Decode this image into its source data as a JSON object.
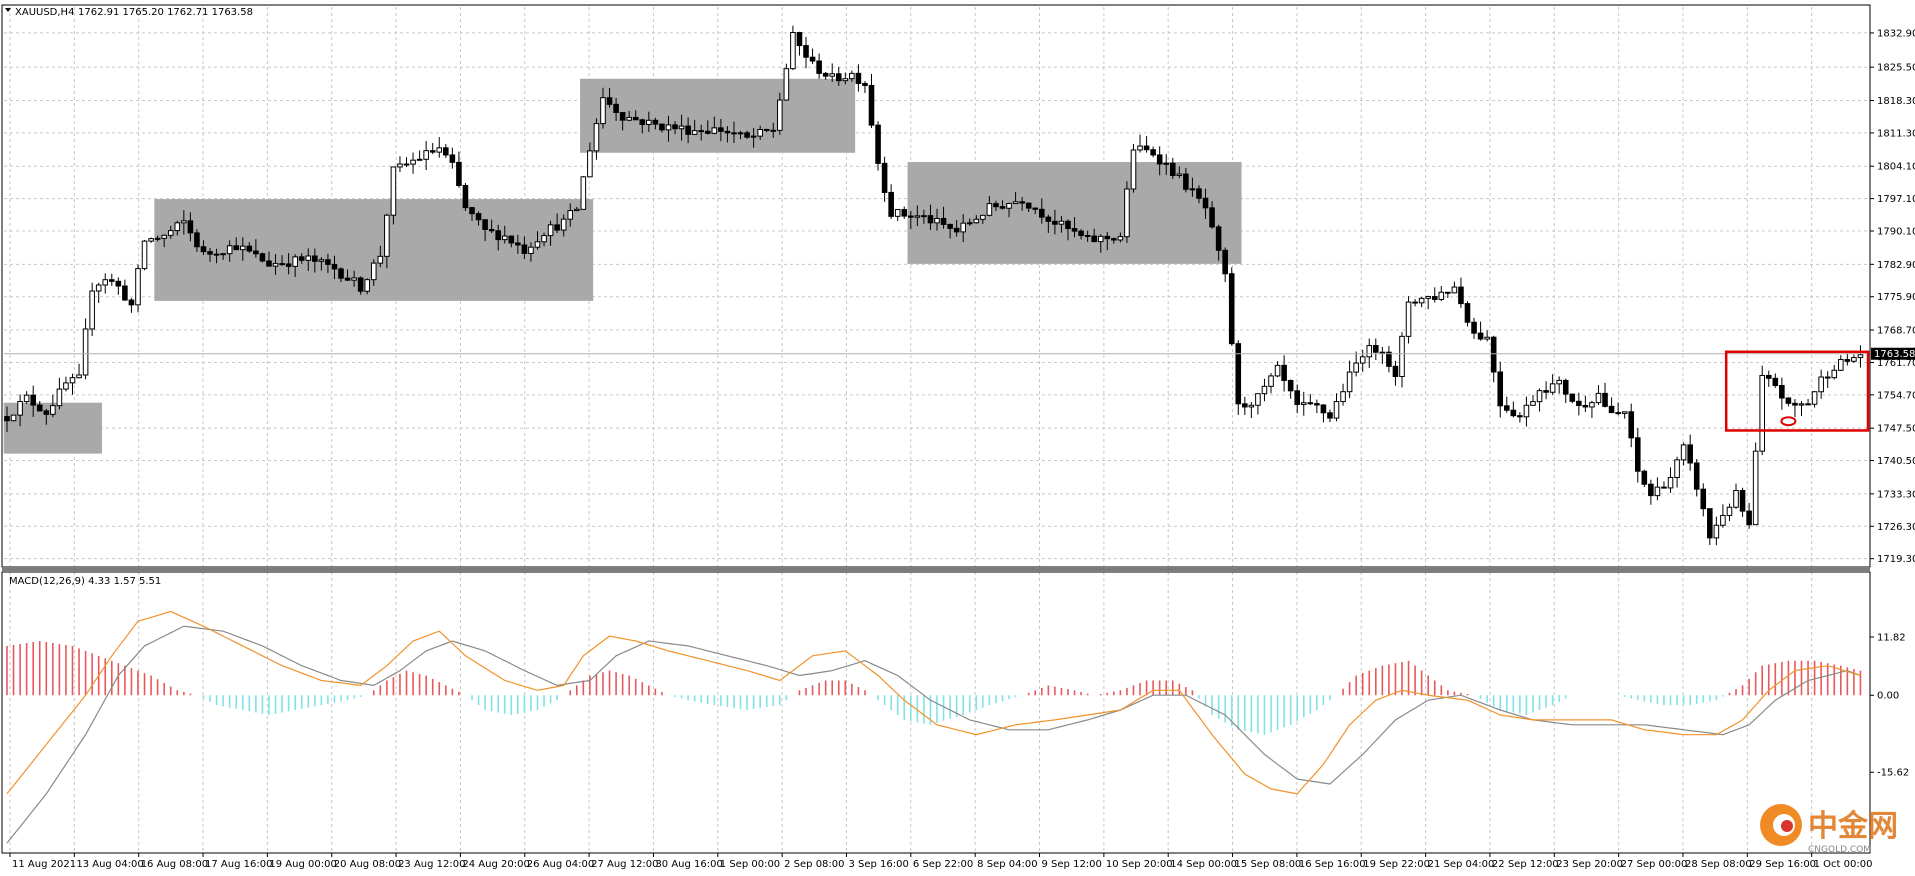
{
  "header": {
    "symbol_label": "XAUUSD,H4",
    "ohlc_label": "1762.91 1765.20 1762.71 1763.58"
  },
  "macd_header": {
    "label": "MACD(12,26,9) 4.33 1.57 5.51"
  },
  "watermark": {
    "brand": "中金网",
    "sub": "CNGOLD.COM"
  },
  "colors": {
    "grid": "#c8c8c8",
    "bull_body": "#ffffff",
    "bear_body": "#000000",
    "range_box": "#a9a9a9",
    "highlight": "#e00000",
    "macd_pos": "#e8585a",
    "macd_neg": "#7fe3e8",
    "macd_line": "#f0932b",
    "signal_line": "#8a8a8a"
  },
  "chart_data": {
    "type": "candlestick",
    "symbol": "XAUUSD",
    "timeframe": "H4",
    "y_ticks": [
      "1832.90",
      "1825.50",
      "1818.30",
      "1811.30",
      "1804.10",
      "1797.10",
      "1790.10",
      "1782.90",
      "1775.90",
      "1768.70",
      "1761.70",
      "1754.70",
      "1747.50",
      "1740.50",
      "1733.30",
      "1726.30",
      "1719.30"
    ],
    "ylim": [
      1717.5,
      1838.5
    ],
    "current_price": "1763.58",
    "x_ticks": [
      "11 Aug 2021",
      "13 Aug 04:00",
      "16 Aug 08:00",
      "17 Aug 16:00",
      "19 Aug 00:00",
      "20 Aug 08:00",
      "23 Aug 12:00",
      "24 Aug 20:00",
      "26 Aug 04:00",
      "27 Aug 12:00",
      "30 Aug 16:00",
      "1 Sep 00:00",
      "2 Sep 08:00",
      "3 Sep 16:00",
      "6 Sep 22:00",
      "8 Sep 04:00",
      "9 Sep 12:00",
      "10 Sep 20:00",
      "14 Sep 00:00",
      "15 Sep 08:00",
      "16 Sep 16:00",
      "19 Sep 22:00",
      "21 Sep 04:00",
      "22 Sep 12:00",
      "23 Sep 20:00",
      "27 Sep 00:00",
      "28 Sep 08:00",
      "29 Sep 16:00",
      "1 Oct 00:00"
    ],
    "price_path": [
      [
        0,
        1750
      ],
      [
        3,
        1754
      ],
      [
        6,
        1751
      ],
      [
        9,
        1757
      ],
      [
        11,
        1758
      ],
      [
        13,
        1778
      ],
      [
        15,
        1780
      ],
      [
        17,
        1778
      ],
      [
        19,
        1774
      ],
      [
        21,
        1788
      ],
      [
        24,
        1789
      ],
      [
        27,
        1792
      ],
      [
        30,
        1785
      ],
      [
        35,
        1787
      ],
      [
        40,
        1783
      ],
      [
        46,
        1784
      ],
      [
        50,
        1782
      ],
      [
        54,
        1778
      ],
      [
        57,
        1785
      ],
      [
        59,
        1803
      ],
      [
        63,
        1806
      ],
      [
        66,
        1808
      ],
      [
        68,
        1804
      ],
      [
        70,
        1795
      ],
      [
        73,
        1790
      ],
      [
        76,
        1789
      ],
      [
        79,
        1786
      ],
      [
        82,
        1790
      ],
      [
        85,
        1792
      ],
      [
        87,
        1795
      ],
      [
        89,
        1808
      ],
      [
        91,
        1819
      ],
      [
        94,
        1815
      ],
      [
        99,
        1813
      ],
      [
        104,
        1812
      ],
      [
        109,
        1812
      ],
      [
        113,
        1810
      ],
      [
        117,
        1812
      ],
      [
        120,
        1832
      ],
      [
        123,
        1826
      ],
      [
        126,
        1823
      ],
      [
        129,
        1824
      ],
      [
        131,
        1822
      ],
      [
        133,
        1805
      ],
      [
        135,
        1794
      ],
      [
        140,
        1793
      ],
      [
        145,
        1790
      ],
      [
        150,
        1795
      ],
      [
        155,
        1797
      ],
      [
        160,
        1792
      ],
      [
        165,
        1788
      ],
      [
        170,
        1789
      ],
      [
        172,
        1808
      ],
      [
        175,
        1807
      ],
      [
        178,
        1803
      ],
      [
        180,
        1800
      ],
      [
        183,
        1795
      ],
      [
        186,
        1780
      ],
      [
        188,
        1752
      ],
      [
        191,
        1754
      ],
      [
        194,
        1760
      ],
      [
        197,
        1752
      ],
      [
        200,
        1752
      ],
      [
        202,
        1750
      ],
      [
        204,
        1756
      ],
      [
        207,
        1764
      ],
      [
        210,
        1765
      ],
      [
        212,
        1758
      ],
      [
        214,
        1775
      ],
      [
        218,
        1776
      ],
      [
        221,
        1778
      ],
      [
        224,
        1768
      ],
      [
        226,
        1767
      ],
      [
        228,
        1753
      ],
      [
        231,
        1750
      ],
      [
        234,
        1756
      ],
      [
        237,
        1757
      ],
      [
        240,
        1752
      ],
      [
        243,
        1755
      ],
      [
        245,
        1750
      ],
      [
        247,
        1751
      ],
      [
        249,
        1738
      ],
      [
        251,
        1733
      ],
      [
        254,
        1737
      ],
      [
        256,
        1743
      ],
      [
        258,
        1735
      ],
      [
        260,
        1724
      ],
      [
        262,
        1729
      ],
      [
        264,
        1733
      ],
      [
        266,
        1726
      ],
      [
        268,
        1758
      ],
      [
        270,
        1757
      ],
      [
        272,
        1752
      ],
      [
        275,
        1753
      ],
      [
        277,
        1758
      ],
      [
        279,
        1761
      ],
      [
        281,
        1762
      ],
      [
        283,
        1763.58
      ]
    ],
    "range_boxes": [
      {
        "from": 0,
        "to": 14,
        "low": 1742,
        "high": 1753
      },
      {
        "from": 23,
        "to": 89,
        "low": 1775,
        "high": 1797
      },
      {
        "from": 88,
        "to": 129,
        "low": 1807,
        "high": 1823
      },
      {
        "from": 138,
        "to": 188,
        "low": 1783,
        "high": 1805
      }
    ],
    "highlight_box": {
      "from": 263,
      "to": 283,
      "low": 1747,
      "high": 1764
    },
    "marker": {
      "index": 272,
      "price": 1749
    },
    "macd": {
      "ylim": [
        -32,
        25
      ],
      "y_ticks": [
        "11.82",
        "0.00",
        "-15.62"
      ],
      "macd_line": [
        [
          0,
          -20
        ],
        [
          6,
          -10
        ],
        [
          12,
          0
        ],
        [
          16,
          8
        ],
        [
          20,
          15
        ],
        [
          25,
          17
        ],
        [
          30,
          14
        ],
        [
          36,
          10
        ],
        [
          42,
          6
        ],
        [
          48,
          3
        ],
        [
          54,
          2
        ],
        [
          58,
          6
        ],
        [
          62,
          11
        ],
        [
          66,
          13
        ],
        [
          70,
          8
        ],
        [
          76,
          3
        ],
        [
          81,
          1
        ],
        [
          85,
          2
        ],
        [
          88,
          8
        ],
        [
          92,
          12
        ],
        [
          96,
          11
        ],
        [
          101,
          9
        ],
        [
          107,
          7
        ],
        [
          113,
          5
        ],
        [
          118,
          3
        ],
        [
          123,
          8
        ],
        [
          128,
          9
        ],
        [
          133,
          4
        ],
        [
          137,
          -1
        ],
        [
          142,
          -6
        ],
        [
          148,
          -8
        ],
        [
          154,
          -6
        ],
        [
          160,
          -5
        ],
        [
          165,
          -4
        ],
        [
          170,
          -3
        ],
        [
          175,
          1
        ],
        [
          179,
          1
        ],
        [
          184,
          -8
        ],
        [
          189,
          -16
        ],
        [
          193,
          -19
        ],
        [
          197,
          -20
        ],
        [
          201,
          -14
        ],
        [
          205,
          -6
        ],
        [
          209,
          -1
        ],
        [
          213,
          1
        ],
        [
          217,
          0
        ],
        [
          223,
          -1
        ],
        [
          228,
          -4
        ],
        [
          233,
          -5
        ],
        [
          239,
          -5
        ],
        [
          245,
          -5
        ],
        [
          250,
          -7
        ],
        [
          256,
          -8
        ],
        [
          261,
          -8
        ],
        [
          265,
          -5
        ],
        [
          269,
          1
        ],
        [
          273,
          5
        ],
        [
          278,
          6
        ],
        [
          283,
          4
        ]
      ],
      "signal_line": [
        [
          0,
          -30
        ],
        [
          6,
          -20
        ],
        [
          12,
          -8
        ],
        [
          17,
          4
        ],
        [
          21,
          10
        ],
        [
          27,
          14
        ],
        [
          33,
          13
        ],
        [
          39,
          10
        ],
        [
          45,
          6
        ],
        [
          51,
          3
        ],
        [
          56,
          2
        ],
        [
          60,
          5
        ],
        [
          64,
          9
        ],
        [
          68,
          11
        ],
        [
          73,
          9
        ],
        [
          79,
          5
        ],
        [
          84,
          2
        ],
        [
          89,
          3
        ],
        [
          93,
          8
        ],
        [
          98,
          11
        ],
        [
          104,
          10
        ],
        [
          110,
          8
        ],
        [
          116,
          6
        ],
        [
          121,
          4
        ],
        [
          126,
          5
        ],
        [
          131,
          7
        ],
        [
          136,
          4
        ],
        [
          141,
          -1
        ],
        [
          147,
          -5
        ],
        [
          153,
          -7
        ],
        [
          159,
          -7
        ],
        [
          165,
          -5
        ],
        [
          170,
          -3
        ],
        [
          175,
          0
        ],
        [
          180,
          0
        ],
        [
          186,
          -4
        ],
        [
          192,
          -12
        ],
        [
          197,
          -17
        ],
        [
          202,
          -18
        ],
        [
          207,
          -12
        ],
        [
          212,
          -5
        ],
        [
          217,
          -1
        ],
        [
          222,
          0
        ],
        [
          228,
          -3
        ],
        [
          233,
          -5
        ],
        [
          239,
          -6
        ],
        [
          244,
          -6
        ],
        [
          250,
          -6
        ],
        [
          256,
          -7
        ],
        [
          262,
          -8
        ],
        [
          266,
          -6
        ],
        [
          270,
          -1
        ],
        [
          275,
          3
        ],
        [
          281,
          5
        ],
        [
          283,
          4
        ]
      ],
      "histogram_env": [
        [
          0,
          10
        ],
        [
          5,
          11
        ],
        [
          10,
          10
        ],
        [
          14,
          8
        ],
        [
          18,
          6
        ],
        [
          22,
          4
        ],
        [
          26,
          1
        ],
        [
          29,
          0
        ],
        [
          32,
          -2
        ],
        [
          36,
          -3
        ],
        [
          40,
          -4
        ],
        [
          44,
          -3
        ],
        [
          48,
          -2
        ],
        [
          52,
          -1
        ],
        [
          55,
          0
        ],
        [
          58,
          3
        ],
        [
          61,
          5
        ],
        [
          64,
          4
        ],
        [
          67,
          2
        ],
        [
          70,
          0
        ],
        [
          73,
          -3
        ],
        [
          77,
          -4
        ],
        [
          81,
          -3
        ],
        [
          84,
          -1
        ],
        [
          86,
          1
        ],
        [
          89,
          4
        ],
        [
          92,
          5
        ],
        [
          95,
          4
        ],
        [
          98,
          2
        ],
        [
          101,
          0
        ],
        [
          104,
          -1
        ],
        [
          108,
          -2
        ],
        [
          113,
          -3
        ],
        [
          118,
          -2
        ],
        [
          121,
          1
        ],
        [
          125,
          3
        ],
        [
          128,
          3
        ],
        [
          131,
          1
        ],
        [
          134,
          -2
        ],
        [
          137,
          -5
        ],
        [
          141,
          -6
        ],
        [
          146,
          -4
        ],
        [
          150,
          -2
        ],
        [
          155,
          0
        ],
        [
          159,
          2
        ],
        [
          163,
          1
        ],
        [
          166,
          0
        ],
        [
          170,
          1
        ],
        [
          174,
          3
        ],
        [
          178,
          3
        ],
        [
          181,
          1
        ],
        [
          184,
          -4
        ],
        [
          188,
          -7
        ],
        [
          192,
          -8
        ],
        [
          196,
          -6
        ],
        [
          200,
          -3
        ],
        [
          203,
          0
        ],
        [
          206,
          4
        ],
        [
          210,
          6
        ],
        [
          214,
          7
        ],
        [
          217,
          4
        ],
        [
          220,
          1
        ],
        [
          224,
          0
        ],
        [
          228,
          -3
        ],
        [
          232,
          -4
        ],
        [
          236,
          -2
        ],
        [
          239,
          0
        ],
        [
          242,
          0
        ],
        [
          246,
          0
        ],
        [
          249,
          -1
        ],
        [
          253,
          -2
        ],
        [
          257,
          -2
        ],
        [
          261,
          -1
        ],
        [
          265,
          2
        ],
        [
          268,
          6
        ],
        [
          272,
          7
        ],
        [
          276,
          7
        ],
        [
          280,
          6
        ],
        [
          283,
          5
        ]
      ]
    }
  }
}
